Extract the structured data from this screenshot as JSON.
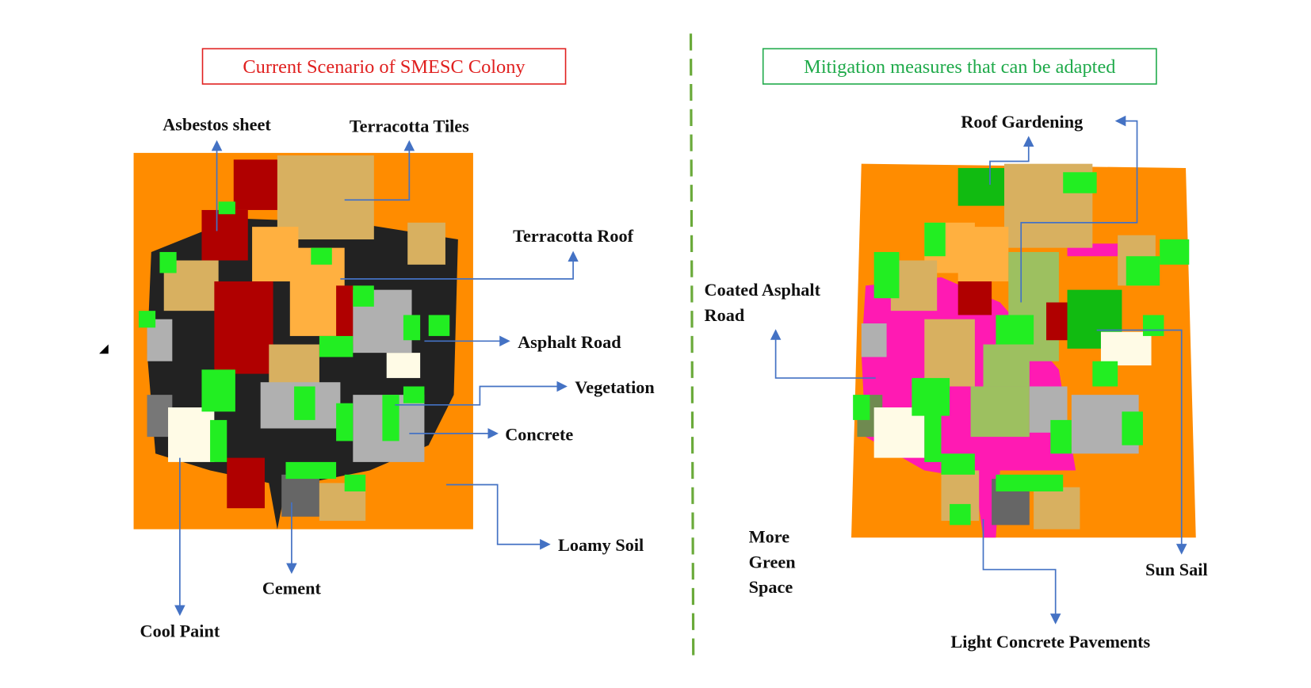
{
  "left_panel": {
    "title": "Current Scenario of SMESC Colony",
    "title_color": "#e0201f",
    "labels": {
      "asbestos": "Asbestos sheet",
      "terracotta_tiles": "Terracotta Tiles",
      "terracotta_roof": "Terracotta Roof",
      "asphalt_road": "Asphalt Road",
      "vegetation": "Vegetation",
      "concrete": "Concrete",
      "loamy_soil": "Loamy Soil",
      "cement": "Cement",
      "cool_paint": "Cool Paint"
    }
  },
  "right_panel": {
    "title": "Mitigation measures that can be adapted",
    "title_color": "#1faa4a",
    "labels": {
      "roof_gardening": "Roof Gardening",
      "coated_asphalt_1": "Coated Asphalt",
      "coated_asphalt_2": "Road",
      "green_1": "More",
      "green_2": "Green",
      "green_3": "Space",
      "sun_sail": "Sun Sail",
      "light_concrete": "Light Concrete Pavements"
    }
  },
  "colors": {
    "soil": "#ff8c00",
    "asphalt": "#222222",
    "coated_asphalt": "#ff1ab3",
    "vegetation": "#22ee22",
    "concrete": "#b0b0b0",
    "terracotta_tiles": "#d8b060",
    "terracotta_roof": "#ffb040",
    "asbestos": "#b00000",
    "cool_paint": "#fffbe6",
    "divider": "#6aaa3a",
    "arrow": "#4472c4"
  }
}
